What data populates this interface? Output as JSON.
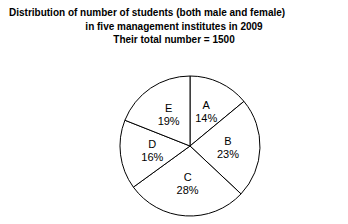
{
  "chart_data": {
    "type": "pie",
    "title": "Distribution of number of students (both male and female)",
    "subtitle": [
      "in five management institutes in 2009",
      "Their total number = 1500"
    ],
    "categories": [
      "A",
      "B",
      "C",
      "D",
      "E"
    ],
    "values": [
      14,
      23,
      28,
      16,
      19
    ],
    "value_labels": [
      "14%",
      "23%",
      "28%",
      "16%",
      "19%"
    ],
    "color": "#ffffff",
    "data_labels": true
  }
}
